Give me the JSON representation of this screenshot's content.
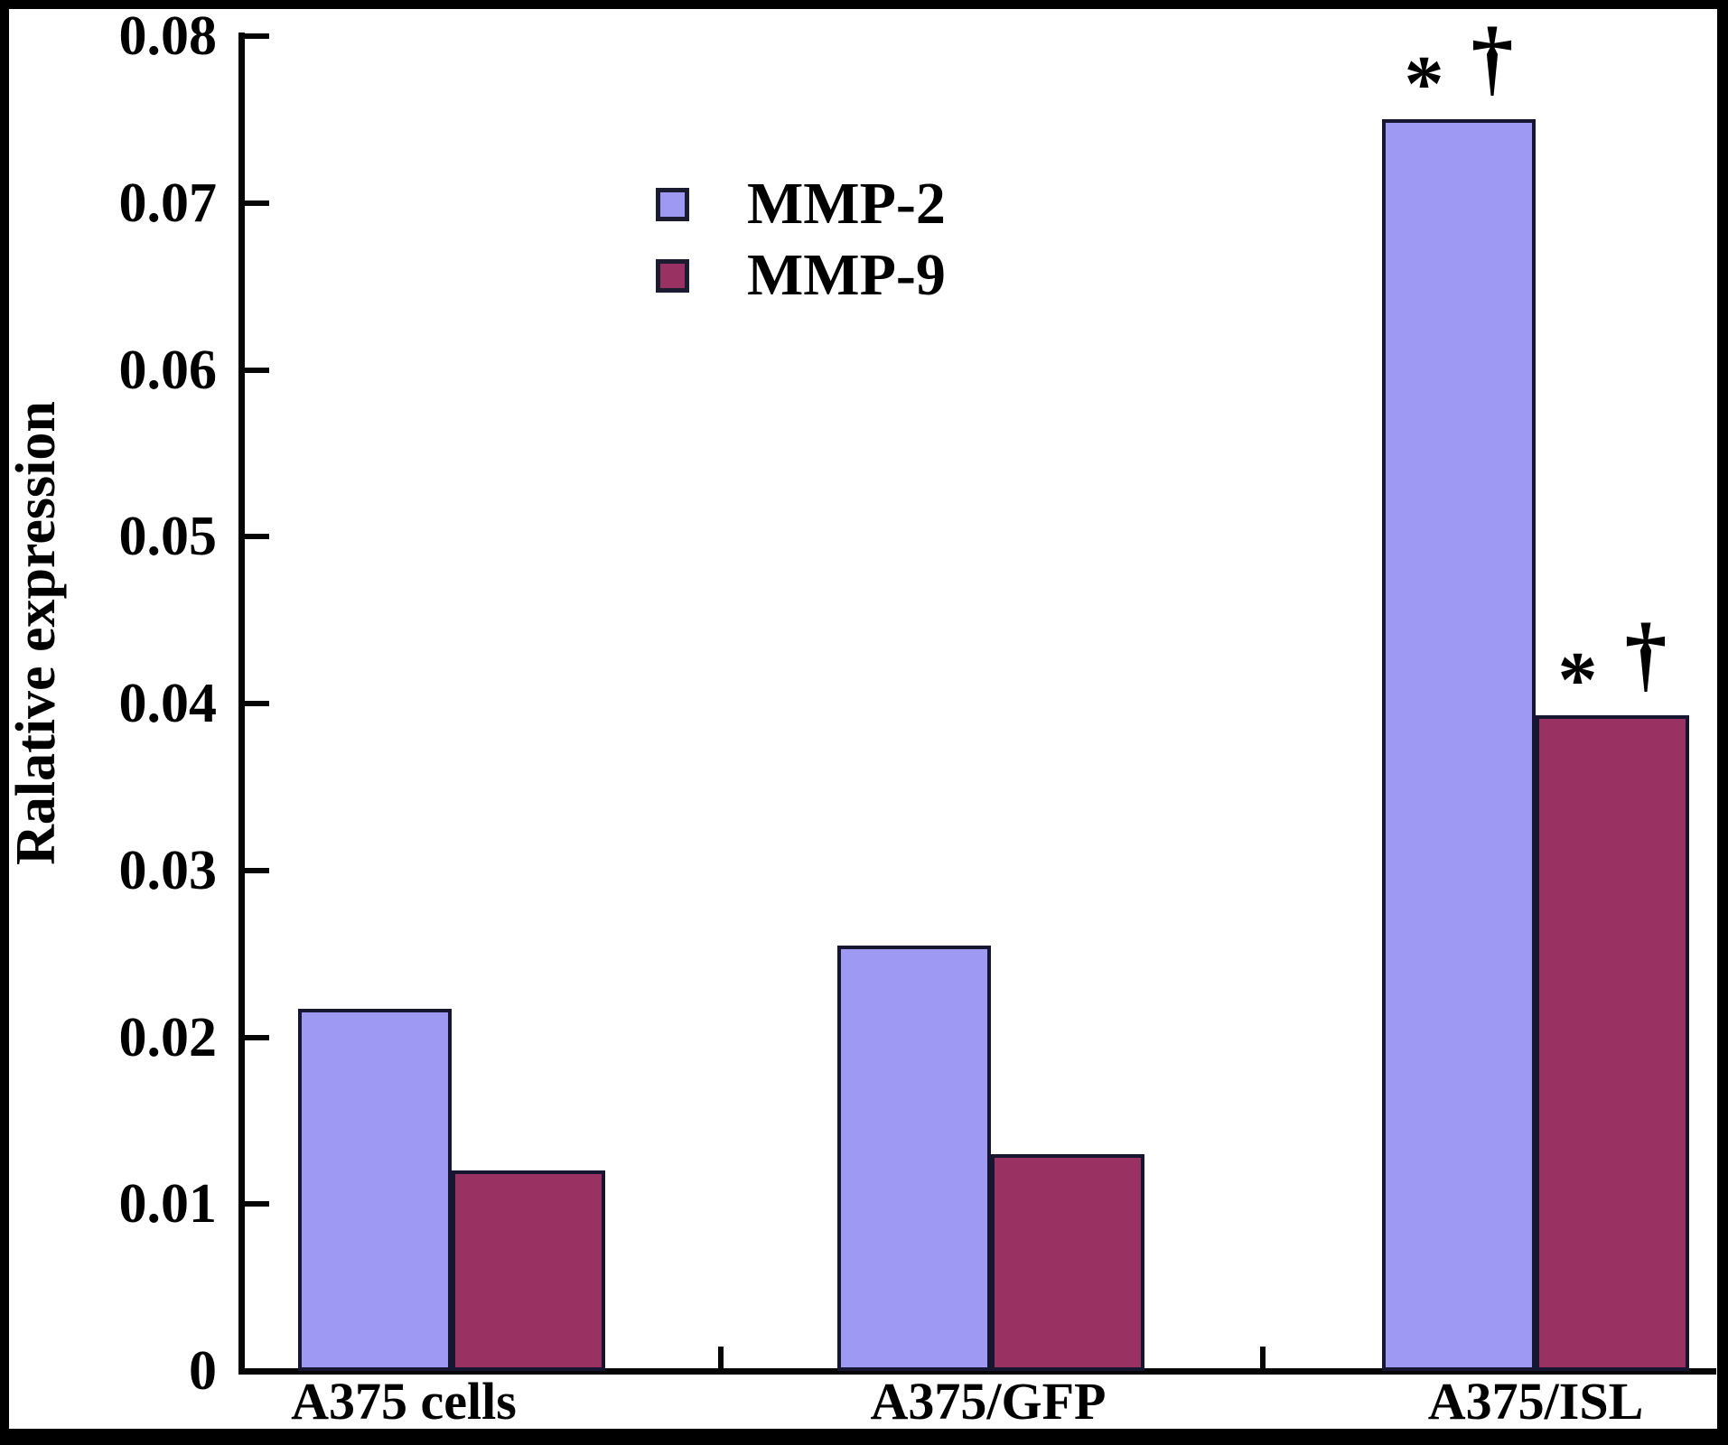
{
  "figure": {
    "y_axis_title": "Ralative expression",
    "y_ticks": [
      "0.08",
      "0.07",
      "0.06",
      "0.05",
      "0.04",
      "0.03",
      "0.02",
      "0.01",
      "0"
    ],
    "frame_color": "#000000",
    "background_color": "#ffffff"
  },
  "legend": {
    "items": [
      {
        "label": "MMP-2",
        "color": "#9e99f2"
      },
      {
        "label": "MMP-9",
        "color": "#9a3163"
      }
    ]
  },
  "chart_data": {
    "type": "bar",
    "title": "",
    "xlabel": "",
    "ylabel": "Ralative expression",
    "categories": [
      "A375 cells",
      "A375/GFP",
      "A375/ISL"
    ],
    "series": [
      {
        "name": "MMP-2",
        "color": "#9e99f2",
        "values": [
          0.0217,
          0.0255,
          0.075
        ],
        "significance": [
          "",
          "",
          "* †"
        ]
      },
      {
        "name": "MMP-9",
        "color": "#9a3163",
        "values": [
          0.012,
          0.013,
          0.0393
        ],
        "significance": [
          "",
          "",
          "* †"
        ]
      }
    ],
    "ylim": [
      0,
      0.08
    ],
    "y_tick_step": 0.01,
    "grid": false,
    "legend_position": "inside upper-left area",
    "annotation_symbols": [
      "*",
      "†"
    ],
    "bar_border_color": "#161630"
  }
}
